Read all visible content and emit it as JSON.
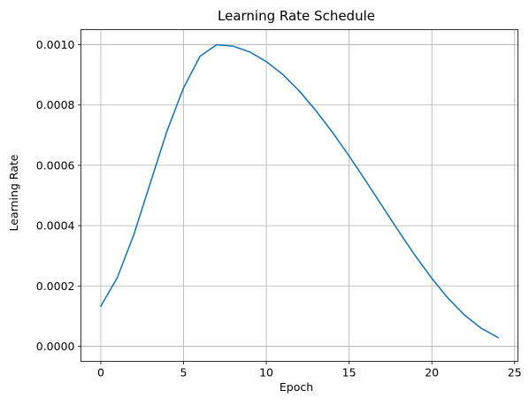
{
  "chart_data": {
    "type": "line",
    "title": "Learning Rate Schedule",
    "xlabel": "Epoch",
    "ylabel": "Learning Rate",
    "xlim": [
      -1.2,
      25.2
    ],
    "ylim": [
      -5e-05,
      0.00105
    ],
    "xticks": [
      0,
      5,
      10,
      15,
      20,
      25
    ],
    "xtick_labels": [
      "0",
      "5",
      "10",
      "15",
      "20",
      "25"
    ],
    "yticks": [
      0.0,
      0.0002,
      0.0004,
      0.0006,
      0.0008,
      0.001
    ],
    "ytick_labels": [
      "0.0000",
      "0.0002",
      "0.0004",
      "0.0006",
      "0.0008",
      "0.0010"
    ],
    "grid": true,
    "line_color": "#1f77b4",
    "grid_color": "#b0b0b0",
    "series": [
      {
        "x": [
          0,
          1,
          2,
          3,
          4,
          5,
          6,
          7,
          8,
          9,
          10,
          11,
          12,
          13,
          14,
          15,
          16,
          17,
          18,
          19,
          20,
          21,
          22,
          23,
          24
        ],
        "values": [
          0.000133,
          0.000228,
          0.000371,
          0.000543,
          0.000714,
          0.000857,
          0.000962,
          0.001,
          0.000995,
          0.000976,
          0.000944,
          0.000901,
          0.000846,
          0.000781,
          0.000709,
          0.000631,
          0.000549,
          0.000465,
          0.000381,
          0.0003,
          0.000225,
          0.000158,
          0.000102,
          5.9e-05,
          2.9e-05
        ]
      }
    ]
  }
}
